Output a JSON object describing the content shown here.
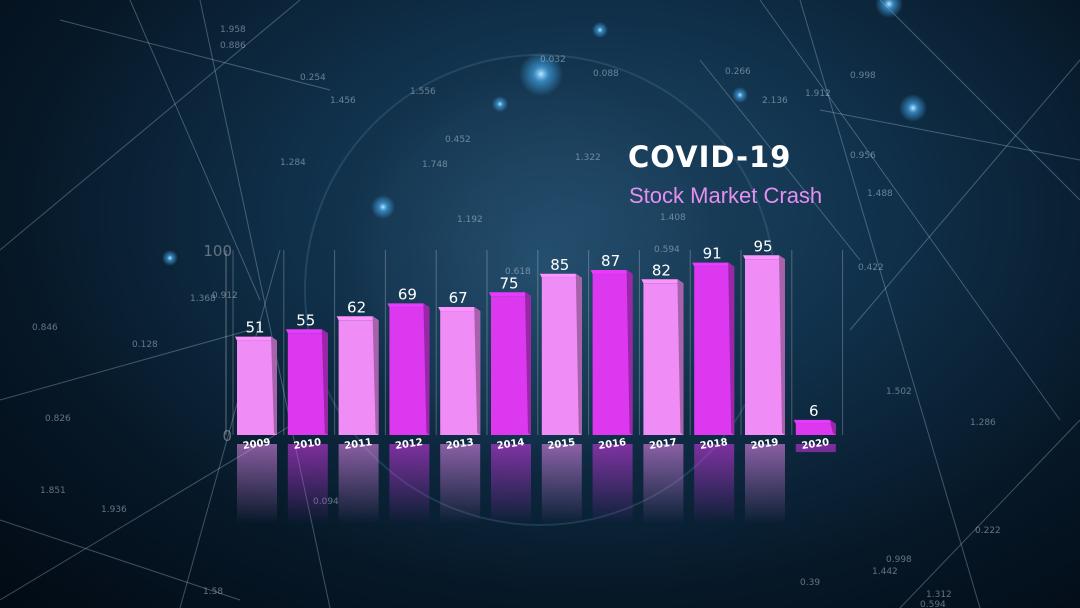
{
  "heading": {
    "title": "COVID-19",
    "subtitle": "Stock Market Crash"
  },
  "colors": {
    "bar_light": "#f08cf6",
    "bar_dark": "#dc38f0",
    "subtitle": "#e58ff0",
    "background": "#0b2236"
  },
  "chart_data": {
    "type": "bar",
    "categories": [
      "2009",
      "2010",
      "2011",
      "2012",
      "2013",
      "2014",
      "2015",
      "2016",
      "2017",
      "2018",
      "2019",
      "2020"
    ],
    "values": [
      51,
      55,
      62,
      69,
      67,
      75,
      85,
      87,
      82,
      91,
      95,
      6
    ],
    "ylim": [
      0,
      100
    ],
    "ytick_labels": [
      "0",
      "100"
    ],
    "grid": true,
    "xlabel": "",
    "ylabel": ""
  },
  "background_numbers": [
    "1.958",
    "0.886",
    "0.254",
    "1.456",
    "1.556",
    "0.032",
    "0.088",
    "0.266",
    "2.136",
    "1.912",
    "0.998",
    "1.284",
    "1.748",
    "0.452",
    "1.322",
    "1.192",
    "1.408",
    "0.956",
    "1.488",
    "0.594",
    "0.618",
    "0.912",
    "1.368",
    "0.422",
    "0.846",
    "0.128",
    "0.826",
    "1.502",
    "1.851",
    "1.936",
    "0.094",
    "1.58",
    "0.39",
    "1.442",
    "0.998",
    "1.312",
    "0.594",
    "0.222",
    "1.286"
  ]
}
